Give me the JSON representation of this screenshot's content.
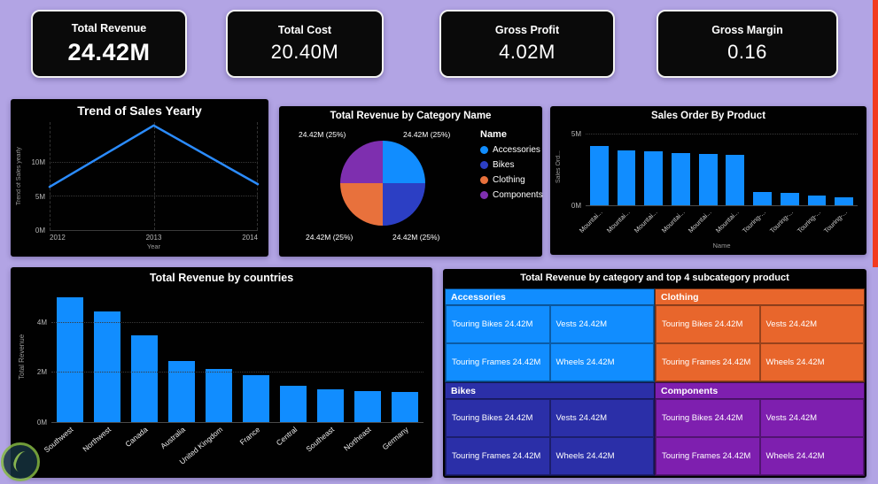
{
  "page": {
    "bg_color": "#b2a4e4",
    "accent_strip_color": "#f23a1f"
  },
  "kpi_cards": [
    {
      "label": "Total Revenue",
      "value": "24.42M"
    },
    {
      "label": "Total Cost",
      "value": "20.40M"
    },
    {
      "label": "Gross Profit",
      "value": "4.02M"
    },
    {
      "label": "Gross Margin",
      "value": "0.16"
    }
  ],
  "chart_data": [
    {
      "type": "line",
      "title": "Trend of Sales Yearly",
      "xlabel": "Year",
      "ylabel": "Trend of Sales yearly",
      "x": [
        "2012",
        "2013",
        "2014"
      ],
      "values": [
        6.4,
        15.5,
        6.8
      ],
      "ylim": [
        0,
        16
      ],
      "yticks": [
        "0M",
        "5M",
        "10M"
      ],
      "line_color": "#2B8CFF",
      "grid": true
    },
    {
      "type": "pie",
      "title": "Total Revenue by Category Name",
      "legend_title": "Name",
      "legend_position": "right",
      "slices": [
        {
          "name": "Accessories",
          "label": "24.42M (25%)",
          "value": 24.42,
          "pct": 25,
          "color": "#118DFF"
        },
        {
          "name": "Bikes",
          "label": "24.42M (25%)",
          "value": 24.42,
          "pct": 25,
          "color": "#2C3FC4"
        },
        {
          "name": "Clothing",
          "label": "24.42M (25%)",
          "value": 24.42,
          "pct": 25,
          "color": "#E8713C"
        },
        {
          "name": "Components",
          "label": "24.42M (25%)",
          "value": 24.42,
          "pct": 25,
          "color": "#7E2FAF"
        }
      ]
    },
    {
      "type": "bar",
      "title": "Sales Order By Product",
      "xlabel": "Name",
      "ylabel": "Sales Ord...",
      "categories": [
        "Mountai...",
        "Mountai...",
        "Mountai...",
        "Mountai...",
        "Mountai...",
        "Mountai...",
        "Touring-...",
        "Touring-...",
        "Touring-...",
        "Touring-..."
      ],
      "values": [
        4.2,
        3.9,
        3.8,
        3.7,
        3.65,
        3.55,
        0.95,
        0.85,
        0.7,
        0.55
      ],
      "ylim": [
        0,
        5.5
      ],
      "yticks": [
        "0M",
        "5M"
      ],
      "bar_color": "#118DFF"
    },
    {
      "type": "bar",
      "title": "Total Revenue by countries",
      "xlabel": "",
      "ylabel": "Total Revenue",
      "categories": [
        "Southwest",
        "Northwest",
        "Canada",
        "Australia",
        "United Kingdom",
        "France",
        "Central",
        "Southeast",
        "Northeast",
        "Germany"
      ],
      "values": [
        5.0,
        4.45,
        3.5,
        2.45,
        2.15,
        1.9,
        1.45,
        1.3,
        1.25,
        1.2
      ],
      "ylim": [
        0,
        5.3
      ],
      "yticks": [
        "0M",
        "2M",
        "4M"
      ],
      "bar_color": "#118DFF"
    },
    {
      "type": "table",
      "title": "Total Revenue by category and top 4 subcategory product",
      "groups": [
        {
          "name": "Accessories",
          "color": "#118DFF",
          "cells": [
            [
              "Touring Bikes 24.42M",
              "Vests 24.42M"
            ],
            [
              "Touring Frames 24.42M",
              "Wheels 24.42M"
            ]
          ]
        },
        {
          "name": "Clothing",
          "color": "#E8662C",
          "cells": [
            [
              "Touring Bikes 24.42M",
              "Vests 24.42M"
            ],
            [
              "Touring Frames 24.42M",
              "Wheels 24.42M"
            ]
          ]
        },
        {
          "name": "Bikes",
          "color": "#2B2FA8",
          "cells": [
            [
              "Touring Bikes 24.42M",
              "Vests 24.42M"
            ],
            [
              "Touring Frames 24.42M",
              "Wheels 24.42M"
            ]
          ]
        },
        {
          "name": "Components",
          "color": "#7E1FAF",
          "cells": [
            [
              "Touring Bikes 24.42M",
              "Vests 24.42M"
            ],
            [
              "Touring Frames 24.42M",
              "Wheels 24.42M"
            ]
          ]
        }
      ]
    }
  ]
}
